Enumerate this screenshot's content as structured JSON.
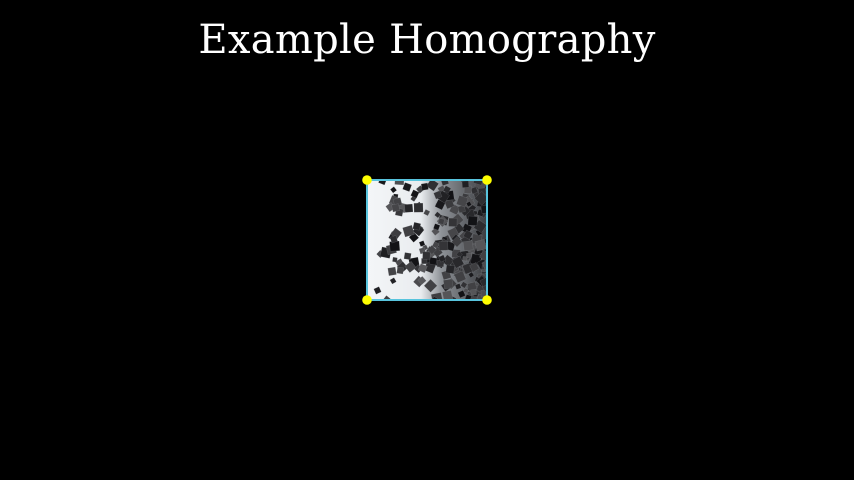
{
  "title": "Example Homography",
  "colors": {
    "background": "#000000",
    "title_text": "#ffffff",
    "quad_border": "#58c4dd",
    "corner_handle": "#ffff00",
    "image_light": "#f4f6f8",
    "cube_dark": "#1c1c1f"
  },
  "handles": [
    "top-left",
    "top-right",
    "bottom-right",
    "bottom-left"
  ]
}
